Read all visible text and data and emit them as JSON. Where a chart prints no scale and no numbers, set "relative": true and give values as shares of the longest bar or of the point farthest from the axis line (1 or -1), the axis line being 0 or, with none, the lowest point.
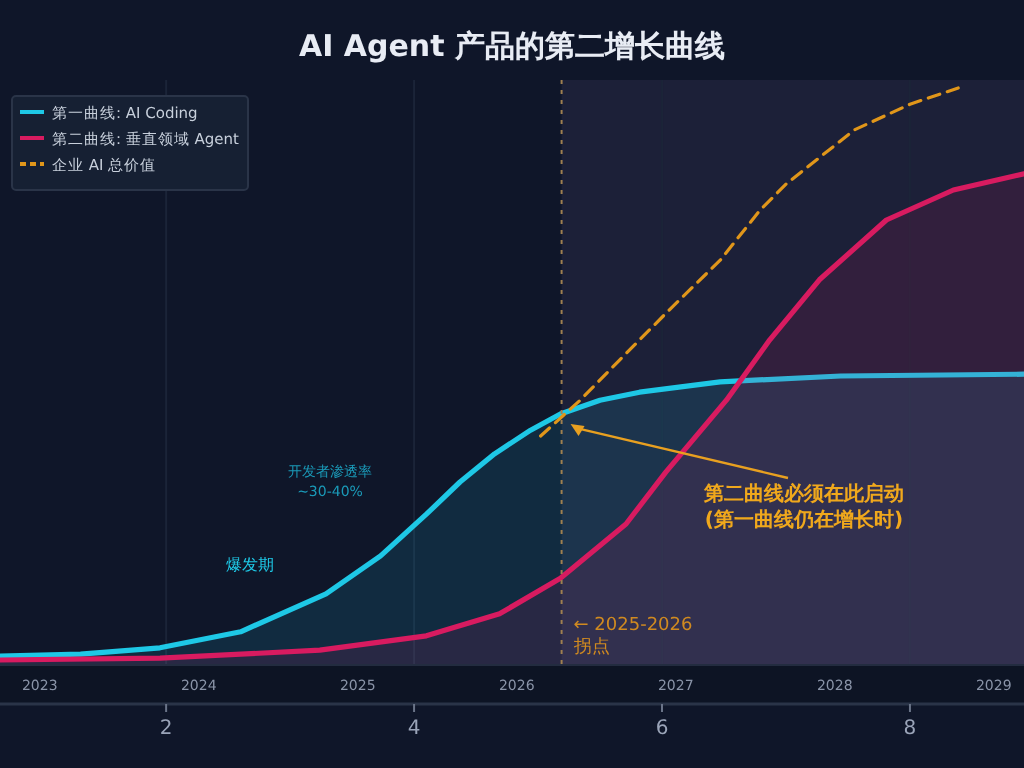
{
  "chart_data": {
    "type": "area",
    "title": "AI Agent 产品的第二增长曲线",
    "relative": true,
    "xlim": [
      0.66,
      8.92
    ],
    "xticks": [
      2,
      4,
      6,
      8
    ],
    "x2lim": [
      2022.75,
      2029.19
    ],
    "x2ticks": [
      2023,
      2024,
      2025,
      2026,
      2027,
      2028,
      2029
    ],
    "grid": "x",
    "legend": "top left",
    "series": [
      {
        "name": "第一曲线: AI Coding",
        "color": "#1ec8e6",
        "x": [
          0.66,
          1.31,
          1.95,
          2.6,
          3.29,
          3.73,
          4.1,
          4.37,
          4.65,
          4.94,
          5.18,
          5.5,
          5.82,
          6.47,
          7.44,
          8.92
        ],
        "values": [
          0.014,
          0.017,
          0.028,
          0.056,
          0.122,
          0.188,
          0.26,
          0.316,
          0.365,
          0.406,
          0.434,
          0.458,
          0.472,
          0.49,
          0.5,
          0.503
        ]
      },
      {
        "name": "第二曲线: 垂直领域 Agent",
        "color": "#d81b60",
        "x": [
          0.66,
          1.95,
          3.24,
          4.1,
          4.69,
          5.18,
          5.71,
          6.03,
          6.52,
          6.87,
          7.27,
          7.81,
          8.35,
          8.92
        ],
        "values": [
          0.007,
          0.01,
          0.024,
          0.049,
          0.087,
          0.149,
          0.243,
          0.333,
          0.458,
          0.563,
          0.667,
          0.771,
          0.823,
          0.851
        ]
      },
      {
        "name": "企业 AI 总价值",
        "color": "#e0961a",
        "type": "line",
        "line_style": "dashed",
        "x": [
          5.02,
          5.34,
          5.66,
          6.06,
          6.47,
          6.79,
          7.0,
          7.55,
          8.0,
          8.39
        ],
        "values": [
          0.396,
          0.458,
          0.528,
          0.615,
          0.701,
          0.788,
          0.833,
          0.927,
          0.972,
          1.0
        ]
      }
    ],
    "ref_lines": [
      {
        "axis": "x",
        "value": 5.19,
        "label": "← 2025-2026 拐点",
        "color": "#a08050",
        "line_style": "dotted"
      }
    ],
    "bands": [
      {
        "axis": "x",
        "from": 5.19,
        "to": 8.92,
        "color": "#1c2038"
      }
    ],
    "annotations": [
      "开发者渗透率 ~30-40%",
      "爆发期",
      {
        "text": "第二曲线必须在此启动 (第一曲线仍在增长时)",
        "x": 5.23,
        "y": 0.42
      }
    ]
  }
}
